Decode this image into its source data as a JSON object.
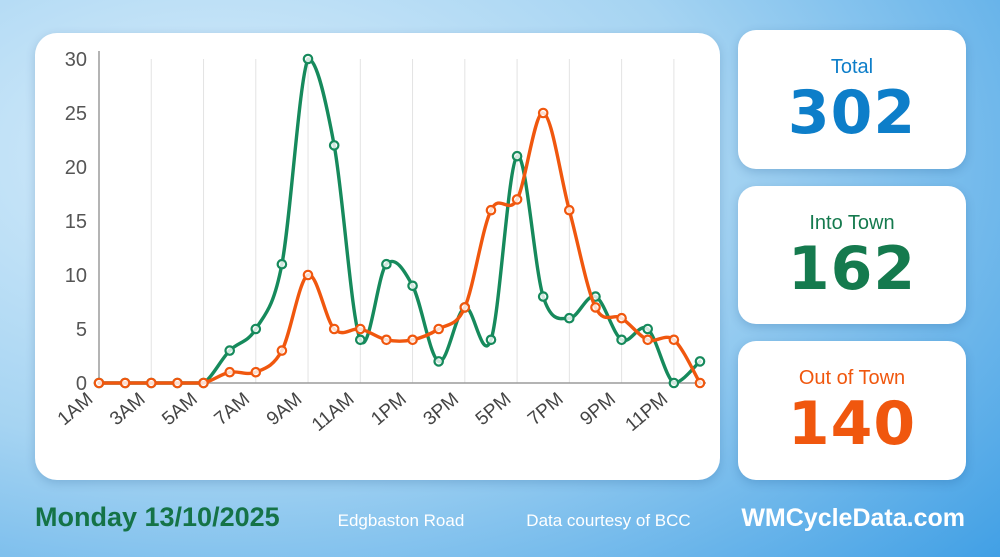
{
  "chart_data": {
    "type": "line",
    "x_labels": [
      "1AM",
      "2AM",
      "3AM",
      "4AM",
      "5AM",
      "6AM",
      "7AM",
      "8AM",
      "9AM",
      "10AM",
      "11AM",
      "12PM",
      "1PM",
      "2PM",
      "3PM",
      "4PM",
      "5PM",
      "6PM",
      "7PM",
      "8PM",
      "9PM",
      "10PM",
      "11PM",
      "12AM"
    ],
    "tick_every": 2,
    "ylim": [
      0,
      30
    ],
    "ytick_step": 5,
    "grid": "vertical",
    "legend": "none",
    "title": "",
    "series": [
      {
        "name": "Into Town",
        "color": "#168a5c",
        "values": [
          0,
          0,
          0,
          0,
          0,
          3,
          5,
          11,
          30,
          22,
          4,
          11,
          9,
          2,
          7,
          4,
          21,
          8,
          6,
          8,
          4,
          5,
          0,
          2
        ]
      },
      {
        "name": "Out of Town",
        "color": "#f0570e",
        "values": [
          0,
          0,
          0,
          0,
          0,
          1,
          1,
          3,
          10,
          5,
          5,
          4,
          4,
          5,
          7,
          16,
          17,
          25,
          16,
          7,
          6,
          4,
          4,
          0
        ]
      }
    ]
  },
  "stats": [
    {
      "label": "Total",
      "value": 302,
      "color": "#0d7ec9"
    },
    {
      "label": "Into Town",
      "value": 162,
      "color": "#157a4e"
    },
    {
      "label": "Out of Town",
      "value": 140,
      "color": "#f0570e"
    }
  ],
  "footer": {
    "date": "Monday 13/10/2025",
    "location": "Edgbaston Road",
    "courtesy": "Data courtesy of BCC",
    "brand": "WMCycleData.com",
    "date_color": "#157347",
    "text_color": "#ffffff"
  }
}
